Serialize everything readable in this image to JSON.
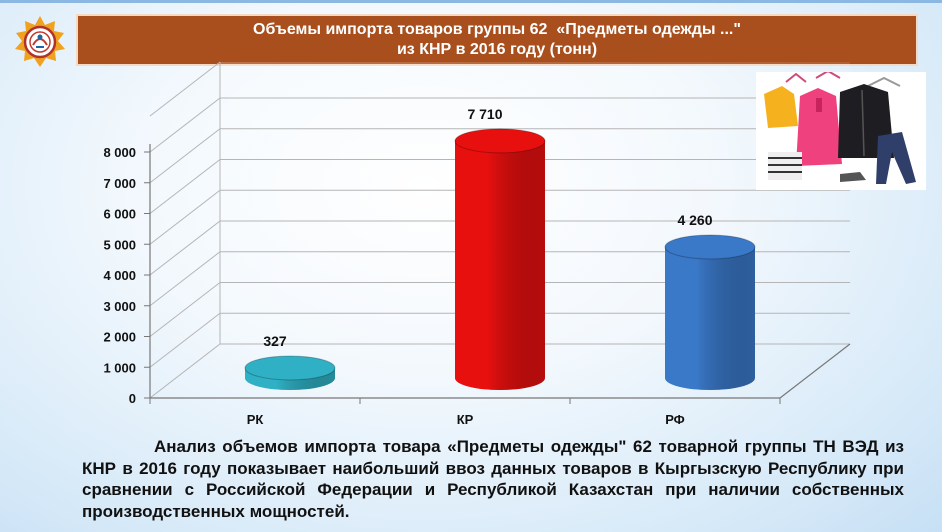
{
  "header": {
    "title_line1": "Объемы импорта товаров группы 62  «Предметы одежды ...\"",
    "title_line2": "из КНР в 2016 году (тонн)"
  },
  "chart_data": {
    "type": "bar",
    "categories": [
      "РК",
      "КР",
      "РФ"
    ],
    "values": [
      327,
      7710,
      4260
    ],
    "value_labels": [
      "327",
      "7 710",
      "4 260"
    ],
    "colors": [
      "#2fb0c4",
      "#e8100f",
      "#3a78c8"
    ],
    "ylim": [
      0,
      8000
    ],
    "yticks": [
      0,
      1000,
      2000,
      3000,
      4000,
      5000,
      6000,
      7000,
      8000
    ],
    "ytick_labels": [
      "0",
      "1 000",
      "2 000",
      "3 000",
      "4 000",
      "5 000",
      "6 000",
      "7 000",
      "8 000"
    ],
    "style": "3d-cylinder",
    "grid": true,
    "legend": "none"
  },
  "analysis_text": "Анализ объемов импорта товара «Предметы одежды\" 62 товарной группы  ТН ВЭД из КНР в 2016 году показывает наибольший ввоз данных товаров в Кыргызскую Республику при сравнении с Российской Федерации и Республикой Казахстан при наличии собственных производственных мощностей."
}
